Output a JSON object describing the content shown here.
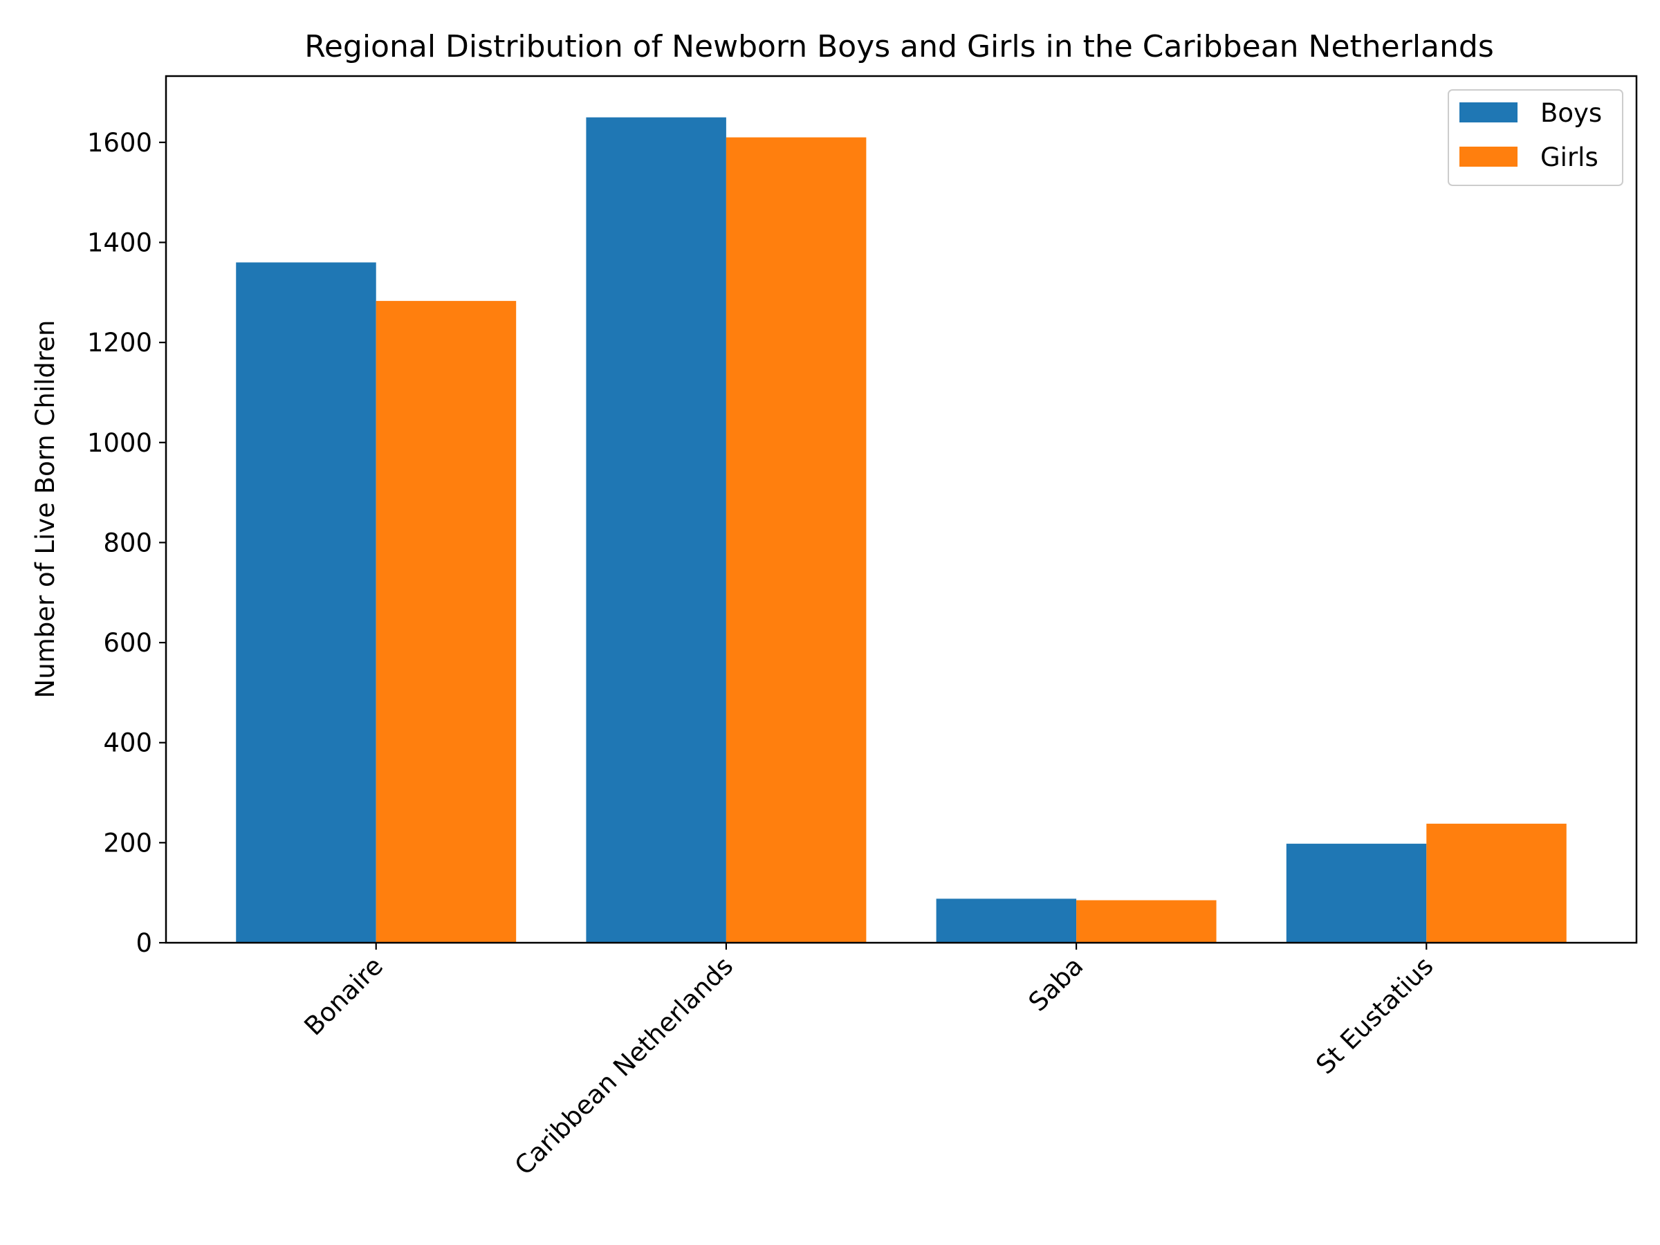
{
  "chart_data": {
    "type": "bar",
    "title": "Regional Distribution of Newborn Boys and Girls in the Caribbean Netherlands",
    "xlabel": "",
    "ylabel": "Number of Live Born Children",
    "categories": [
      "Bonaire",
      "Caribbean Netherlands",
      "Saba",
      "St Eustatius"
    ],
    "series": [
      {
        "name": "Boys",
        "color": "#1f77b4",
        "values": [
          1360,
          1650,
          88,
          198
        ]
      },
      {
        "name": "Girls",
        "color": "#ff7f0e",
        "values": [
          1283,
          1610,
          85,
          238
        ]
      }
    ],
    "ylim": [
      0,
      1732.5
    ],
    "yticks": [
      0,
      200,
      400,
      600,
      800,
      1000,
      1200,
      1400,
      1600
    ],
    "grid": false,
    "legend_position": "top-right",
    "xtick_rotation_deg": 45
  }
}
